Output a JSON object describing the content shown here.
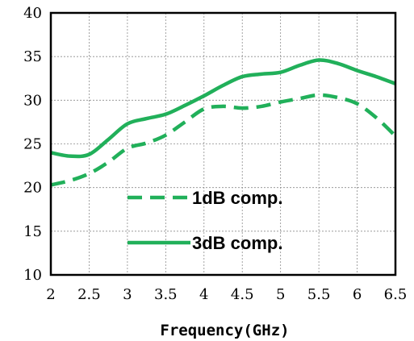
{
  "chart_data": {
    "type": "line",
    "title": "",
    "xlabel": "Frequency(GHz)",
    "ylabel": "",
    "xlim": [
      2,
      6.5
    ],
    "ylim": [
      10,
      40
    ],
    "x_ticks": [
      2,
      2.5,
      3,
      3.5,
      4,
      4.5,
      5,
      5.5,
      6,
      6.5
    ],
    "x_tick_labels": [
      "2",
      "2.5",
      "3",
      "3.5",
      "4",
      "4.5",
      "5",
      "5.5",
      "6",
      "6.5"
    ],
    "y_ticks": [
      10,
      15,
      20,
      25,
      30,
      35,
      40
    ],
    "y_tick_labels": [
      "10",
      "15",
      "20",
      "25",
      "30",
      "35",
      "40"
    ],
    "grid": true,
    "legend_position": "lower-center",
    "series": [
      {
        "name": "1dB comp.",
        "style": "dashed",
        "color": "#21b05a",
        "x": [
          2,
          2.25,
          2.5,
          2.75,
          3,
          3.25,
          3.5,
          3.75,
          4,
          4.25,
          4.5,
          4.75,
          5,
          5.25,
          5.5,
          5.75,
          6,
          6.25,
          6.5
        ],
        "y": [
          20.3,
          20.8,
          21.6,
          22.9,
          24.5,
          25.1,
          26.0,
          27.5,
          29.0,
          29.3,
          29.1,
          29.3,
          29.8,
          30.2,
          30.6,
          30.3,
          29.6,
          28.0,
          25.9
        ]
      },
      {
        "name": "3dB comp.",
        "style": "solid",
        "color": "#21b05a",
        "x": [
          2,
          2.25,
          2.5,
          2.75,
          3,
          3.25,
          3.5,
          3.75,
          4,
          4.25,
          4.5,
          4.75,
          5,
          5.25,
          5.5,
          5.75,
          6,
          6.25,
          6.5
        ],
        "y": [
          24.0,
          23.6,
          23.8,
          25.5,
          27.3,
          27.9,
          28.4,
          29.4,
          30.5,
          31.7,
          32.7,
          33.0,
          33.2,
          34.0,
          34.6,
          34.2,
          33.4,
          32.7,
          31.9
        ]
      }
    ]
  }
}
